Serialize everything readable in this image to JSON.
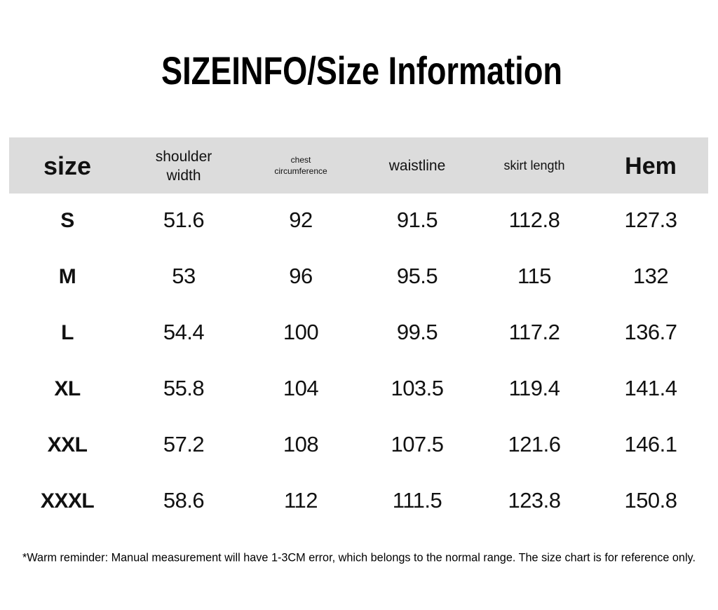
{
  "header": {
    "title": "SIZEINFO/Size Information"
  },
  "table": {
    "columns": [
      "size",
      "shoulder width",
      "chest circumference",
      "waistline",
      "skirt length",
      "Hem"
    ],
    "rows": [
      [
        "S",
        "51.6",
        "92",
        "91.5",
        "112.8",
        "127.3"
      ],
      [
        "M",
        "53",
        "96",
        "95.5",
        "115",
        "132"
      ],
      [
        "L",
        "54.4",
        "100",
        "99.5",
        "117.2",
        "136.7"
      ],
      [
        "XL",
        "55.8",
        "104",
        "103.5",
        "119.4",
        "141.4"
      ],
      [
        "XXL",
        "57.2",
        "108",
        "107.5",
        "121.6",
        "146.1"
      ],
      [
        "XXXL",
        "58.6",
        "112",
        "111.5",
        "123.8",
        "150.8"
      ]
    ]
  },
  "footnote": "*Warm reminder: Manual measurement will have 1-3CM error, which belongs to the normal range. The size chart is for reference only."
}
